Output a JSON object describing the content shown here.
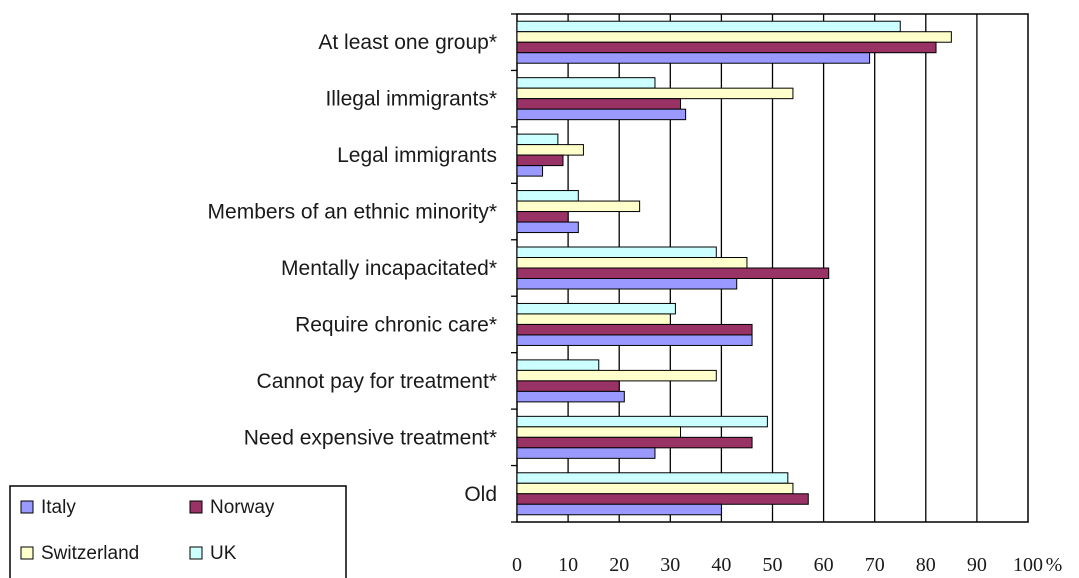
{
  "chart_data": {
    "type": "bar",
    "orientation": "horizontal",
    "categories": [
      "At least one group*",
      "Illegal immigrants*",
      "Legal immigrants",
      "Members of an ethnic minority*",
      "Mentally incapacitated*",
      "Require chronic care*",
      "Cannot pay for treatment*",
      "Need expensive treatment*",
      "Old"
    ],
    "series": [
      {
        "name": "Italy",
        "color": "#9999ff",
        "values": [
          69,
          33,
          5,
          12,
          43,
          46,
          21,
          27,
          40
        ]
      },
      {
        "name": "Norway",
        "color": "#993366",
        "values": [
          82,
          32,
          9,
          10,
          61,
          46,
          20,
          46,
          57
        ]
      },
      {
        "name": "Switzerland",
        "color": "#ffffcc",
        "values": [
          85,
          54,
          13,
          24,
          45,
          30,
          39,
          32,
          54
        ]
      },
      {
        "name": "UK",
        "color": "#ccffff",
        "values": [
          75,
          27,
          8,
          12,
          39,
          31,
          16,
          49,
          53
        ]
      }
    ],
    "series_draw_order_top_to_bottom": [
      "UK",
      "Switzerland",
      "Norway",
      "Italy"
    ],
    "x_ticks": [
      "0",
      "10",
      "20",
      "30",
      "40",
      "50",
      "60",
      "70",
      "80",
      "90",
      "100"
    ],
    "x_unit": "%",
    "xlim": [
      0,
      100
    ],
    "grid": "vertical",
    "title": "",
    "xlabel": "",
    "ylabel": "",
    "legend_position": "bottom-left"
  }
}
